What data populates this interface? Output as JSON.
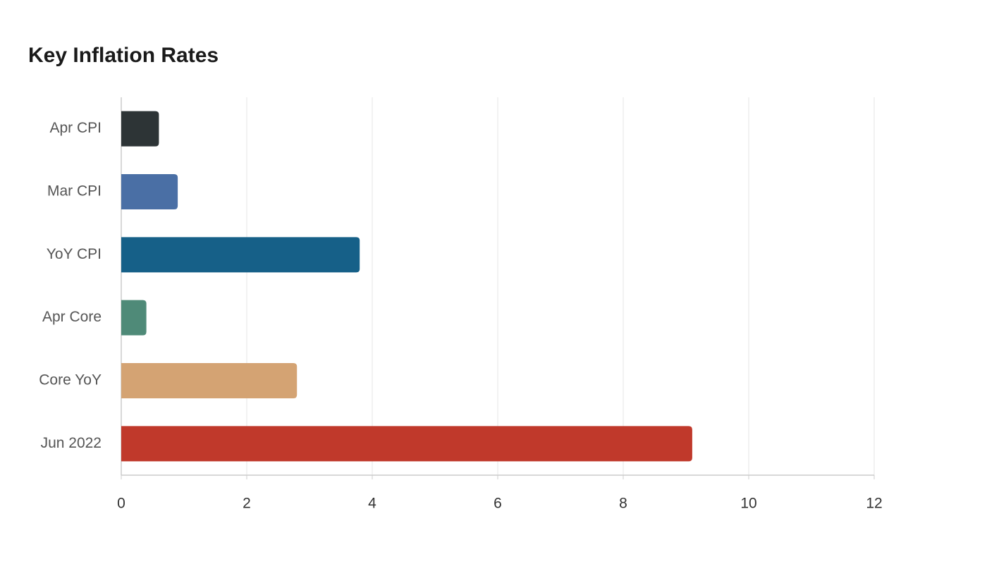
{
  "chart_data": {
    "type": "bar",
    "orientation": "horizontal",
    "title": "Key Inflation Rates",
    "categories": [
      "Apr CPI",
      "Mar CPI",
      "YoY CPI",
      "Apr Core",
      "Core YoY",
      "Jun 2022"
    ],
    "values": [
      0.6,
      0.9,
      3.8,
      0.4,
      2.8,
      9.1
    ],
    "colors": [
      "#2d3436",
      "#4a6fa5",
      "#166088",
      "#4f8a78",
      "#d4a373",
      "#c0392b"
    ],
    "xlim": [
      0,
      12
    ],
    "xticks": [
      0,
      2,
      4,
      6,
      8,
      10,
      12
    ],
    "grid": true
  }
}
